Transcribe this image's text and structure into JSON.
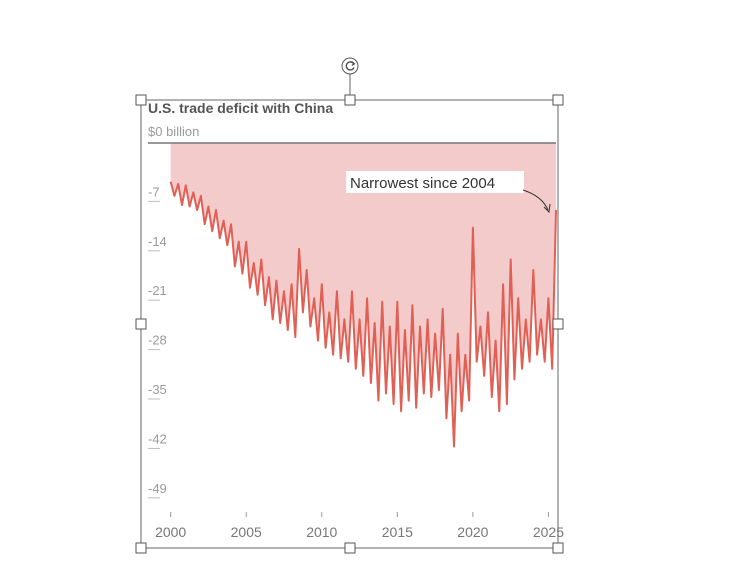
{
  "colors": {
    "line": "#e06055",
    "area": "#f4cbcb",
    "zero_line": "#777777",
    "selection": "#666666"
  },
  "icons": {
    "rotate": "rotate-icon"
  },
  "chart_data": {
    "type": "area",
    "title": "U.S. trade deficit with China",
    "zero_label": "$0 billion",
    "annotation": "Narrowest since 2004",
    "ylim": [
      -52,
      0
    ],
    "y_ticks": [
      -7,
      -14,
      -21,
      -28,
      -35,
      -42,
      -49
    ],
    "y_tick_labels": [
      "-7",
      "-14",
      "-21",
      "-28",
      "-35",
      "-42",
      "-49"
    ],
    "xlim": [
      1998.5,
      2025.5
    ],
    "x_ticks": [
      2000,
      2005,
      2010,
      2015,
      2020,
      2025
    ],
    "x_tick_labels": [
      "2000",
      "2005",
      "2010",
      "2015",
      "2020",
      "2025"
    ],
    "grid": false,
    "series": [
      {
        "x": [
          2000.0,
          2000.25,
          2000.5,
          2000.75,
          2001.0,
          2001.25,
          2001.5,
          2001.75,
          2002.0,
          2002.25,
          2002.5,
          2002.75,
          2003.0,
          2003.25,
          2003.5,
          2003.75,
          2004.0,
          2004.25,
          2004.5,
          2004.75,
          2005.0,
          2005.25,
          2005.5,
          2005.75,
          2006.0,
          2006.25,
          2006.5,
          2006.75,
          2007.0,
          2007.25,
          2007.5,
          2007.75,
          2008.0,
          2008.25,
          2008.5,
          2008.75,
          2009.0,
          2009.25,
          2009.5,
          2009.75,
          2010.0,
          2010.25,
          2010.5,
          2010.75,
          2011.0,
          2011.25,
          2011.5,
          2011.75,
          2012.0,
          2012.25,
          2012.5,
          2012.75,
          2013.0,
          2013.25,
          2013.5,
          2013.75,
          2014.0,
          2014.25,
          2014.5,
          2014.75,
          2015.0,
          2015.25,
          2015.5,
          2015.75,
          2016.0,
          2016.25,
          2016.5,
          2016.75,
          2017.0,
          2017.25,
          2017.5,
          2017.75,
          2018.0,
          2018.25,
          2018.5,
          2018.75,
          2019.0,
          2019.25,
          2019.5,
          2019.75,
          2020.0,
          2020.25,
          2020.5,
          2020.75,
          2021.0,
          2021.25,
          2021.5,
          2021.75,
          2022.0,
          2022.25,
          2022.5,
          2022.75,
          2023.0,
          2023.25,
          2023.5,
          2023.75,
          2024.0,
          2024.25,
          2024.5,
          2024.75,
          2025.0,
          2025.25,
          2025.5
        ],
        "values": [
          -5.5,
          -7.5,
          -5.8,
          -8.8,
          -6.0,
          -9.0,
          -7.0,
          -9.5,
          -7.5,
          -11.5,
          -9.0,
          -12.5,
          -9.5,
          -13.5,
          -11.0,
          -14.5,
          -11.5,
          -17.5,
          -14.0,
          -18.5,
          -14.0,
          -20.5,
          -17.0,
          -21.5,
          -16.5,
          -23.0,
          -19.0,
          -25.0,
          -19.5,
          -25.5,
          -21.0,
          -26.5,
          -20.0,
          -27.5,
          -15.0,
          -24.0,
          -18.0,
          -26.0,
          -22.0,
          -28.0,
          -20.0,
          -29.0,
          -24.0,
          -30.0,
          -21.0,
          -30.5,
          -25.0,
          -31.0,
          -21.0,
          -32.0,
          -25.0,
          -33.0,
          -22.0,
          -34.0,
          -25.5,
          -36.5,
          -22.5,
          -35.5,
          -26.0,
          -37.0,
          -22.5,
          -38.0,
          -26.5,
          -36.5,
          -23.0,
          -37.5,
          -26.0,
          -35.5,
          -25.0,
          -36.0,
          -27.0,
          -35.0,
          -23.5,
          -39.0,
          -30.0,
          -43.0,
          -27.0,
          -38.0,
          -30.0,
          -36.5,
          -12.0,
          -31.0,
          -26.0,
          -33.0,
          -24.0,
          -36.0,
          -28.0,
          -38.0,
          -20.0,
          -37.0,
          -16.5,
          -33.5,
          -22.0,
          -32.0,
          -25.0,
          -31.0,
          -18.0,
          -30.0,
          -25.0,
          -31.0,
          -22.0,
          -32.0,
          -9.5
        ]
      }
    ]
  }
}
